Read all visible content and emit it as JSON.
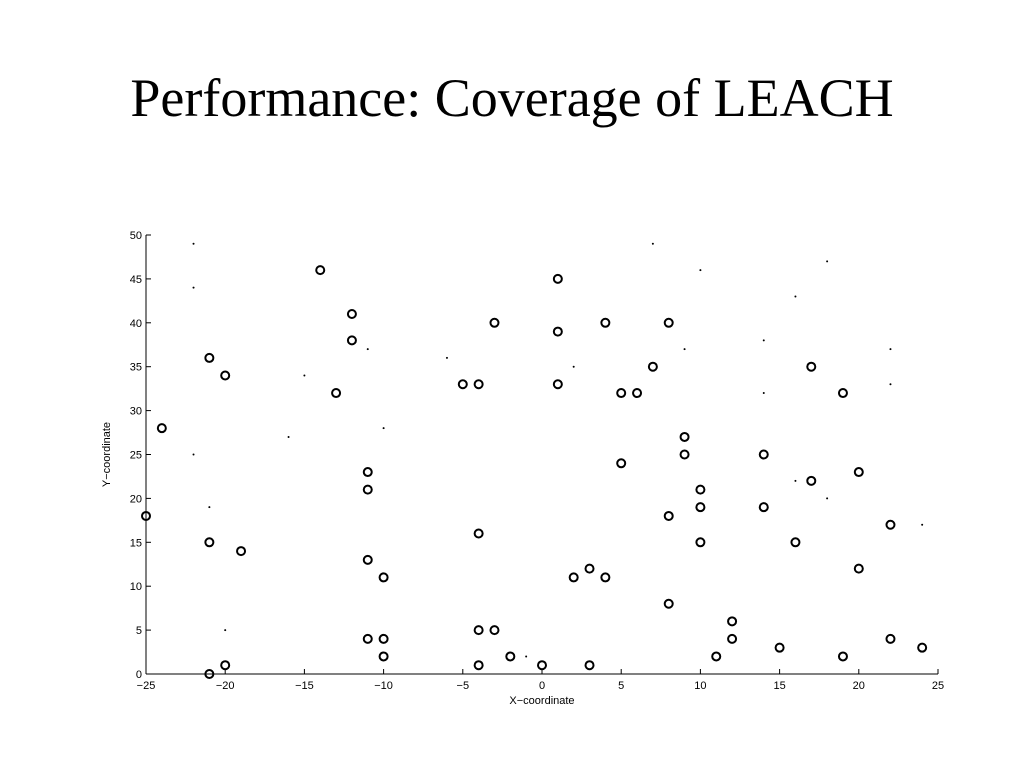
{
  "slide": {
    "title": "Performance: Coverage of LEACH"
  },
  "chart_data": {
    "type": "scatter",
    "title": "",
    "xlabel": "X−coordinate",
    "ylabel": "Y−coordinate",
    "xlim": [
      -25,
      25
    ],
    "ylim": [
      0,
      50
    ],
    "xticks": [
      -25,
      -20,
      -15,
      -10,
      -5,
      0,
      5,
      10,
      15,
      20,
      25
    ],
    "yticks": [
      0,
      5,
      10,
      15,
      20,
      25,
      30,
      35,
      40,
      45,
      50
    ],
    "xtick_labels": [
      "−25",
      "−20",
      "−15",
      "−10",
      "−5",
      "0",
      "5",
      "10",
      "15",
      "20",
      "25"
    ],
    "ytick_labels": [
      "0",
      "5",
      "10",
      "15",
      "20",
      "25",
      "30",
      "35",
      "40",
      "45",
      "50"
    ],
    "grid": false,
    "color": "#000000",
    "series": [
      {
        "marker": "circle",
        "points": [
          [
            -14,
            46
          ],
          [
            1,
            45
          ],
          [
            -12,
            41
          ],
          [
            -3,
            40
          ],
          [
            1,
            39
          ],
          [
            4,
            40
          ],
          [
            8,
            40
          ],
          [
            -12,
            38
          ],
          [
            -21,
            36
          ],
          [
            -20,
            34
          ],
          [
            7,
            35
          ],
          [
            17,
            35
          ],
          [
            -13,
            32
          ],
          [
            -5,
            33
          ],
          [
            -4,
            33
          ],
          [
            1,
            33
          ],
          [
            5,
            32
          ],
          [
            6,
            32
          ],
          [
            19,
            32
          ],
          [
            -24,
            28
          ],
          [
            9,
            27
          ],
          [
            9,
            25
          ],
          [
            14,
            25
          ],
          [
            -11,
            23
          ],
          [
            5,
            24
          ],
          [
            20,
            23
          ],
          [
            17,
            22
          ],
          [
            -11,
            21
          ],
          [
            10,
            21
          ],
          [
            10,
            19
          ],
          [
            14,
            19
          ],
          [
            -25,
            18
          ],
          [
            8,
            18
          ],
          [
            22,
            17
          ],
          [
            -4,
            16
          ],
          [
            -21,
            15
          ],
          [
            10,
            15
          ],
          [
            16,
            15
          ],
          [
            -19,
            14
          ],
          [
            -11,
            13
          ],
          [
            3,
            12
          ],
          [
            20,
            12
          ],
          [
            -10,
            11
          ],
          [
            2,
            11
          ],
          [
            4,
            11
          ],
          [
            8,
            8
          ],
          [
            12,
            6
          ],
          [
            -4,
            5
          ],
          [
            -3,
            5
          ],
          [
            -11,
            4
          ],
          [
            -10,
            4
          ],
          [
            12,
            4
          ],
          [
            22,
            4
          ],
          [
            15,
            3
          ],
          [
            24,
            3
          ],
          [
            -10,
            2
          ],
          [
            -2,
            2
          ],
          [
            11,
            2
          ],
          [
            19,
            2
          ],
          [
            -20,
            1
          ],
          [
            -4,
            1
          ],
          [
            0,
            1
          ],
          [
            3,
            1
          ],
          [
            -21,
            0
          ]
        ]
      },
      {
        "marker": "dot",
        "points": [
          [
            -22,
            49
          ],
          [
            7,
            49
          ],
          [
            10,
            46
          ],
          [
            18,
            47
          ],
          [
            -22,
            44
          ],
          [
            16,
            43
          ],
          [
            -11,
            37
          ],
          [
            -6,
            36
          ],
          [
            9,
            37
          ],
          [
            14,
            38
          ],
          [
            22,
            37
          ],
          [
            -15,
            34
          ],
          [
            2,
            35
          ],
          [
            22,
            33
          ],
          [
            14,
            32
          ],
          [
            -10,
            28
          ],
          [
            -16,
            27
          ],
          [
            -22,
            25
          ],
          [
            16,
            22
          ],
          [
            18,
            20
          ],
          [
            -21,
            19
          ],
          [
            24,
            17
          ],
          [
            -20,
            5
          ],
          [
            -1,
            2
          ]
        ]
      }
    ]
  }
}
